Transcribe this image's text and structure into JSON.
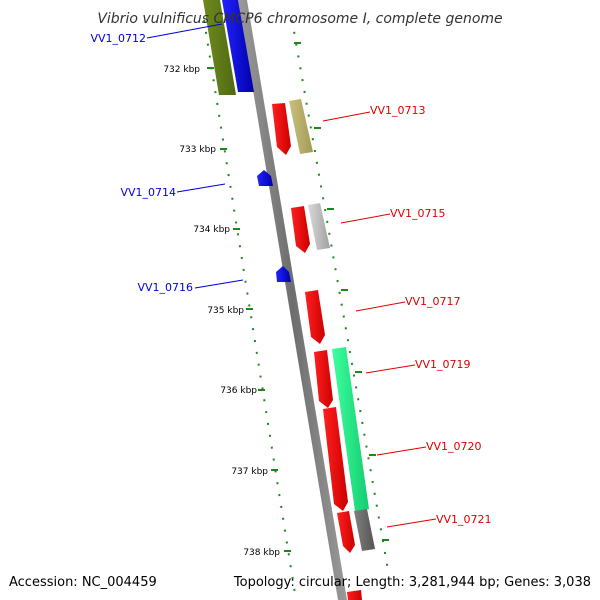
{
  "title": "Vibrio vulnificus CMCP6 chromosome I, complete genome",
  "footer": {
    "accession": "Accession: NC_004459",
    "topology": "Topology: circular; Length: 3,281,944 bp; Genes: 3,038"
  },
  "colors": {
    "backbone": "#808080",
    "tick": "#1a8a1a",
    "forward_gene": "#ee0000",
    "reverse_gene": "#0000ee"
  },
  "ticks": [
    "732 kbp",
    "733 kbp",
    "734 kbp",
    "735 kbp",
    "736 kbp",
    "737 kbp",
    "738 kbp"
  ],
  "genes": [
    {
      "id": "VV1_0712",
      "strand": "-",
      "color": "#1a1aee"
    },
    {
      "id": "VV1_0713",
      "strand": "+",
      "color": "#ee0000"
    },
    {
      "id": "VV1_0714",
      "strand": "-",
      "color": "#1a1aee"
    },
    {
      "id": "VV1_0715",
      "strand": "+",
      "color": "#ee0000"
    },
    {
      "id": "VV1_0716",
      "strand": "-",
      "color": "#1a1aee"
    },
    {
      "id": "VV1_0717",
      "strand": "+",
      "color": "#ee0000"
    },
    {
      "id": "VV1_0719",
      "strand": "+",
      "color": "#ee0000"
    },
    {
      "id": "VV1_0720",
      "strand": "+",
      "color": "#ee0000"
    },
    {
      "id": "VV1_0721",
      "strand": "+",
      "color": "#ee0000"
    }
  ]
}
